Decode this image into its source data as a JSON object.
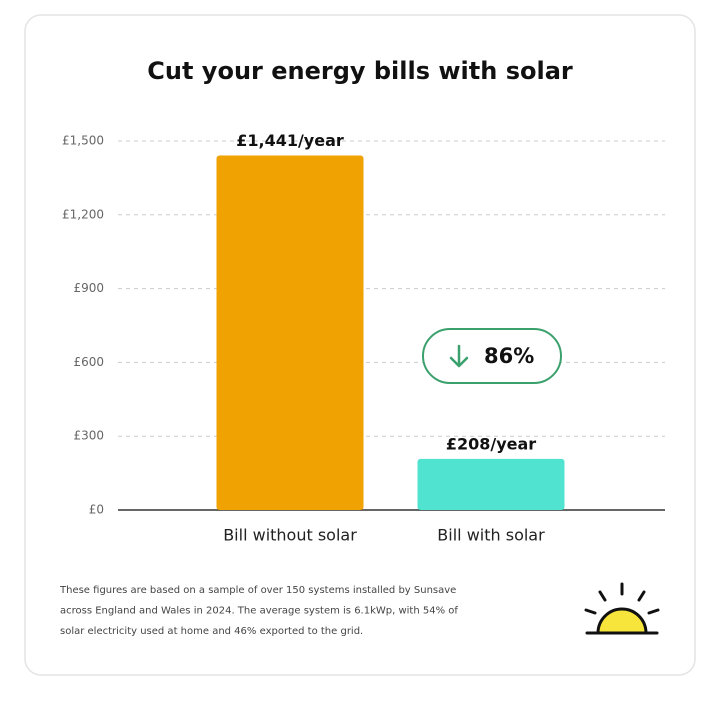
{
  "chart_data": {
    "type": "bar",
    "title": "Cut your energy bills with solar",
    "categories": [
      "Bill without solar",
      "Bill with solar"
    ],
    "values": [
      1441,
      208
    ],
    "value_labels": [
      "£1,441/year",
      "£208/year"
    ],
    "colors": [
      "#f0a202",
      "#4fe3d0"
    ],
    "ylim": [
      0,
      1500
    ],
    "yticks": [
      {
        "value": 0,
        "label": "£0"
      },
      {
        "value": 300,
        "label": "£300"
      },
      {
        "value": 600,
        "label": "£600"
      },
      {
        "value": 900,
        "label": "£900"
      },
      {
        "value": 1200,
        "label": "£1,200"
      },
      {
        "value": 1500,
        "label": "£1,500"
      }
    ],
    "grid": true,
    "annotation": "86%",
    "footnote": [
      "These figures are based on a sample of over 150 systems installed by Sunsave",
      "across England and Wales in 2024. The average system is 6.1kWp, with 54% of",
      "solar electricity used at home and 46% exported to the grid."
    ]
  }
}
